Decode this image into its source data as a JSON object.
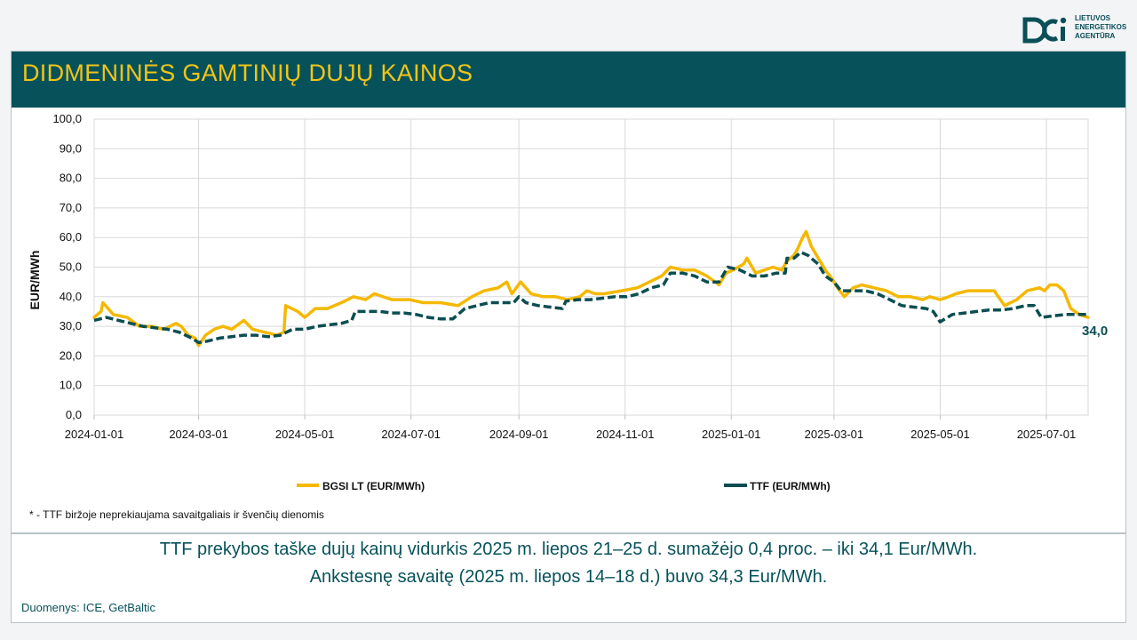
{
  "logo": {
    "name": "lietuvos-energetikos-agentura-logo",
    "lines": [
      "LIETUVOS",
      "ENERGETIKOS",
      "AGENTŪRA"
    ]
  },
  "header": {
    "title": "DIDMENINĖS GAMTINIŲ DUJŲ KAINOS"
  },
  "colors": {
    "header_bg": "#07525a",
    "title": "#f0c419",
    "bgsi": "#f5b800",
    "ttf": "#0b4e52"
  },
  "chart_data": {
    "type": "line",
    "ylabel": "EUR/MWh",
    "ylim": [
      0,
      100
    ],
    "yticks": [
      "100,0",
      "90,0",
      "80,0",
      "70,0",
      "60,0",
      "50,0",
      "40,0",
      "30,0",
      "20,0",
      "10,0",
      "0,0"
    ],
    "xticks": [
      "2024-01-01",
      "2024-03-01",
      "2024-05-01",
      "2024-07-01",
      "2024-09-01",
      "2024-11-01",
      "2025-01-01",
      "2025-03-01",
      "2025-05-01",
      "2025-07-01"
    ],
    "xlim": [
      "2024-01-01",
      "2025-07-25"
    ],
    "grid": true,
    "legend_position": "bottom",
    "end_label": "34,0",
    "series": [
      {
        "name": "BGSI LT (EUR/MWh)",
        "color": "#f5b800",
        "style": "solid",
        "points": [
          [
            "2024-01-01",
            33
          ],
          [
            "2024-01-05",
            35
          ],
          [
            "2024-01-06",
            38
          ],
          [
            "2024-01-09",
            36
          ],
          [
            "2024-01-12",
            34
          ],
          [
            "2024-01-20",
            33
          ],
          [
            "2024-01-27",
            30
          ],
          [
            "2024-02-03",
            30
          ],
          [
            "2024-02-10",
            29
          ],
          [
            "2024-02-17",
            31
          ],
          [
            "2024-02-20",
            30
          ],
          [
            "2024-02-24",
            27
          ],
          [
            "2024-02-28",
            26
          ],
          [
            "2024-03-01",
            23.5
          ],
          [
            "2024-03-05",
            27
          ],
          [
            "2024-03-10",
            29
          ],
          [
            "2024-03-15",
            30
          ],
          [
            "2024-03-20",
            29
          ],
          [
            "2024-03-27",
            32
          ],
          [
            "2024-04-01",
            29
          ],
          [
            "2024-04-08",
            28
          ],
          [
            "2024-04-15",
            27
          ],
          [
            "2024-04-19",
            28
          ],
          [
            "2024-04-20",
            37
          ],
          [
            "2024-04-27",
            35
          ],
          [
            "2024-05-01",
            33
          ],
          [
            "2024-05-07",
            36
          ],
          [
            "2024-05-14",
            36
          ],
          [
            "2024-05-22",
            38
          ],
          [
            "2024-05-29",
            40
          ],
          [
            "2024-06-05",
            39
          ],
          [
            "2024-06-10",
            41
          ],
          [
            "2024-06-20",
            39
          ],
          [
            "2024-06-30",
            39
          ],
          [
            "2024-07-08",
            38
          ],
          [
            "2024-07-18",
            38
          ],
          [
            "2024-07-28",
            37
          ],
          [
            "2024-08-05",
            40
          ],
          [
            "2024-08-12",
            42
          ],
          [
            "2024-08-20",
            43
          ],
          [
            "2024-08-25",
            45
          ],
          [
            "2024-08-28",
            41
          ],
          [
            "2024-09-02",
            45
          ],
          [
            "2024-09-08",
            41
          ],
          [
            "2024-09-15",
            40
          ],
          [
            "2024-09-22",
            40
          ],
          [
            "2024-09-29",
            39
          ],
          [
            "2024-10-06",
            40
          ],
          [
            "2024-10-10",
            42
          ],
          [
            "2024-10-15",
            41
          ],
          [
            "2024-10-20",
            41
          ],
          [
            "2024-10-30",
            42
          ],
          [
            "2024-11-08",
            43
          ],
          [
            "2024-11-15",
            45
          ],
          [
            "2024-11-22",
            47
          ],
          [
            "2024-11-27",
            50
          ],
          [
            "2024-12-04",
            49
          ],
          [
            "2024-12-11",
            49
          ],
          [
            "2024-12-18",
            47
          ],
          [
            "2024-12-25",
            44
          ],
          [
            "2024-12-29",
            48
          ],
          [
            "2025-01-02",
            49
          ],
          [
            "2025-01-08",
            51
          ],
          [
            "2025-01-10",
            53
          ],
          [
            "2025-01-15",
            48
          ],
          [
            "2025-01-20",
            49
          ],
          [
            "2025-01-25",
            50
          ],
          [
            "2025-01-30",
            49
          ],
          [
            "2025-02-02",
            52
          ],
          [
            "2025-02-06",
            54
          ],
          [
            "2025-02-08",
            56
          ],
          [
            "2025-02-11",
            60
          ],
          [
            "2025-02-13",
            62
          ],
          [
            "2025-02-16",
            57
          ],
          [
            "2025-02-18",
            55
          ],
          [
            "2025-02-20",
            53
          ],
          [
            "2025-02-24",
            49
          ],
          [
            "2025-02-28",
            46
          ],
          [
            "2025-03-03",
            43
          ],
          [
            "2025-03-07",
            40
          ],
          [
            "2025-03-12",
            43
          ],
          [
            "2025-03-17",
            44
          ],
          [
            "2025-03-24",
            43
          ],
          [
            "2025-03-31",
            42
          ],
          [
            "2025-04-07",
            40
          ],
          [
            "2025-04-14",
            40
          ],
          [
            "2025-04-21",
            39
          ],
          [
            "2025-04-25",
            40
          ],
          [
            "2025-05-01",
            39
          ],
          [
            "2025-05-06",
            40
          ],
          [
            "2025-05-10",
            41
          ],
          [
            "2025-05-17",
            42
          ],
          [
            "2025-05-25",
            42
          ],
          [
            "2025-06-01",
            42
          ],
          [
            "2025-06-07",
            37
          ],
          [
            "2025-06-14",
            39
          ],
          [
            "2025-06-20",
            42
          ],
          [
            "2025-06-27",
            43
          ],
          [
            "2025-06-30",
            42
          ],
          [
            "2025-07-03",
            44
          ],
          [
            "2025-07-07",
            44
          ],
          [
            "2025-07-11",
            42
          ],
          [
            "2025-07-15",
            36
          ],
          [
            "2025-07-20",
            34
          ],
          [
            "2025-07-25",
            33
          ]
        ]
      },
      {
        "name": "TTF (EUR/MWh)",
        "color": "#0b4e52",
        "style": "dashed",
        "points": [
          [
            "2024-01-01",
            32
          ],
          [
            "2024-01-08",
            33
          ],
          [
            "2024-01-15",
            32
          ],
          [
            "2024-01-22",
            31
          ],
          [
            "2024-01-29",
            30
          ],
          [
            "2024-02-05",
            29.5
          ],
          [
            "2024-02-12",
            29
          ],
          [
            "2024-02-19",
            28
          ],
          [
            "2024-02-26",
            26
          ],
          [
            "2024-03-01",
            24.5
          ],
          [
            "2024-03-06",
            25
          ],
          [
            "2024-03-13",
            26
          ],
          [
            "2024-03-20",
            26.5
          ],
          [
            "2024-03-27",
            27
          ],
          [
            "2024-04-03",
            27
          ],
          [
            "2024-04-10",
            26.5
          ],
          [
            "2024-04-17",
            27
          ],
          [
            "2024-04-24",
            29
          ],
          [
            "2024-05-01",
            29
          ],
          [
            "2024-05-08",
            30
          ],
          [
            "2024-05-15",
            30.5
          ],
          [
            "2024-05-22",
            31
          ],
          [
            "2024-05-28",
            32
          ],
          [
            "2024-05-30",
            35
          ],
          [
            "2024-06-06",
            35
          ],
          [
            "2024-06-13",
            35
          ],
          [
            "2024-06-20",
            34.5
          ],
          [
            "2024-06-27",
            34.5
          ],
          [
            "2024-07-04",
            34
          ],
          [
            "2024-07-11",
            33
          ],
          [
            "2024-07-18",
            32.5
          ],
          [
            "2024-07-25",
            32.5
          ],
          [
            "2024-08-01",
            36
          ],
          [
            "2024-08-08",
            37
          ],
          [
            "2024-08-15",
            38
          ],
          [
            "2024-08-22",
            38
          ],
          [
            "2024-08-29",
            38
          ],
          [
            "2024-09-01",
            40
          ],
          [
            "2024-09-05",
            38
          ],
          [
            "2024-09-12",
            37
          ],
          [
            "2024-09-19",
            36.5
          ],
          [
            "2024-09-26",
            36
          ],
          [
            "2024-09-28",
            38.5
          ],
          [
            "2024-10-05",
            39
          ],
          [
            "2024-10-12",
            39
          ],
          [
            "2024-10-19",
            39.5
          ],
          [
            "2024-10-26",
            40
          ],
          [
            "2024-11-02",
            40
          ],
          [
            "2024-11-09",
            41
          ],
          [
            "2024-11-16",
            43
          ],
          [
            "2024-11-23",
            44
          ],
          [
            "2024-11-27",
            48
          ],
          [
            "2024-12-04",
            48
          ],
          [
            "2024-12-11",
            47
          ],
          [
            "2024-12-18",
            45
          ],
          [
            "2024-12-25",
            45
          ],
          [
            "2024-12-30",
            50
          ],
          [
            "2025-01-06",
            49
          ],
          [
            "2025-01-13",
            47
          ],
          [
            "2025-01-20",
            47
          ],
          [
            "2025-01-27",
            48
          ],
          [
            "2025-02-01",
            48
          ],
          [
            "2025-02-02",
            53
          ],
          [
            "2025-02-06",
            53
          ],
          [
            "2025-02-10",
            55
          ],
          [
            "2025-02-14",
            54
          ],
          [
            "2025-02-20",
            51
          ],
          [
            "2025-02-24",
            47
          ],
          [
            "2025-03-01",
            45
          ],
          [
            "2025-03-05",
            42
          ],
          [
            "2025-03-12",
            42
          ],
          [
            "2025-03-19",
            42
          ],
          [
            "2025-03-26",
            41
          ],
          [
            "2025-04-02",
            39
          ],
          [
            "2025-04-09",
            37
          ],
          [
            "2025-04-16",
            36.5
          ],
          [
            "2025-04-23",
            36
          ],
          [
            "2025-04-27",
            35
          ],
          [
            "2025-05-01",
            31.5
          ],
          [
            "2025-05-08",
            34
          ],
          [
            "2025-05-15",
            34.5
          ],
          [
            "2025-05-22",
            35
          ],
          [
            "2025-05-29",
            35.5
          ],
          [
            "2025-06-05",
            35.5
          ],
          [
            "2025-06-12",
            36
          ],
          [
            "2025-06-19",
            37
          ],
          [
            "2025-06-24",
            37
          ],
          [
            "2025-06-28",
            33
          ],
          [
            "2025-07-05",
            33.5
          ],
          [
            "2025-07-12",
            34
          ],
          [
            "2025-07-19",
            34
          ],
          [
            "2025-07-25",
            34
          ]
        ]
      }
    ]
  },
  "footnote": "* - TTF biržoje neprekiaujama savaitgaliais ir švenčių dienomis",
  "summary": {
    "line1": "TTF prekybos taške dujų kainų vidurkis 2025 m. liepos 21–25 d. sumažėjo 0,4 proc. – iki 34,1 Eur/MWh.",
    "line2": "Ankstesnę savaitę (2025 m. liepos 14–18 d.) buvo 34,3 Eur/MWh."
  },
  "source": "Duomenys: ICE, GetBaltic"
}
